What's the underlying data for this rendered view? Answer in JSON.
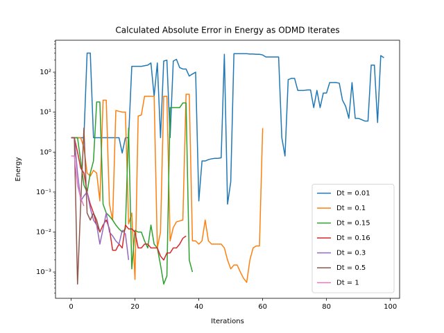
{
  "chart_data": {
    "type": "line",
    "title": "Calculated Absolute Error in Energy as ODMD Iterates",
    "x_label": "Iterations",
    "y_label": "Energy",
    "xlim": [
      -4.9,
      102.9
    ],
    "xticks": [
      0,
      20,
      40,
      60,
      80,
      100
    ],
    "ylim": [
      0.00022,
      630
    ],
    "y_scale": "log",
    "yticks": [
      {
        "value": 0.001,
        "label": "10⁻³"
      },
      {
        "value": 0.01,
        "label": "10⁻²"
      },
      {
        "value": 0.1,
        "label": "10⁻¹"
      },
      {
        "value": 1,
        "label": "10⁰"
      },
      {
        "value": 10,
        "label": "10¹"
      },
      {
        "value": 100,
        "label": "10²"
      }
    ],
    "legend_position": "lower right",
    "series": [
      {
        "name": "Dt = 0.01",
        "color": "#1f77b4",
        "values": [
          2.3,
          2.3,
          2.3,
          2.3,
          2.3,
          300,
          300,
          2.3,
          2.3,
          2.3,
          2.3,
          2.3,
          2.3,
          2.3,
          2.3,
          2.3,
          0.95,
          2.3,
          2.3,
          140,
          140,
          140,
          140,
          145,
          150,
          170,
          25,
          170,
          2.3,
          190,
          200,
          2.3,
          190,
          210,
          130,
          120,
          120,
          80,
          90,
          100,
          0.06,
          0.6,
          0.6,
          0.65,
          0.68,
          0.7,
          0.7,
          0.72,
          280,
          0.05,
          0.18,
          290,
          290,
          290,
          290,
          290,
          285,
          285,
          280,
          280,
          270,
          240,
          240,
          240,
          240,
          240,
          2.3,
          0.8,
          65,
          70,
          70,
          35,
          35,
          35,
          36,
          36,
          13,
          35,
          13,
          30,
          30,
          55,
          55,
          55,
          53,
          20,
          14,
          7,
          55,
          7,
          7,
          6.5,
          6,
          6,
          150,
          150,
          5.5,
          260,
          230
        ]
      },
      {
        "name": "Dt = 0.1",
        "color": "#ff7f0e",
        "values": [
          2.3,
          2.3,
          2.3,
          2.3,
          1.3,
          0.3,
          0.25,
          0.35,
          0.3,
          0.06,
          20,
          20,
          0.05,
          0.02,
          11,
          10.5,
          10,
          10,
          0.016,
          0.03,
          0.00065,
          8,
          8.5,
          25,
          25,
          25,
          25,
          0.004,
          0.01,
          25,
          25,
          0.006,
          0.013,
          0.018,
          0.019,
          0.02,
          28,
          28,
          0.006,
          0.006,
          0.005,
          0.006,
          0.02,
          0.006,
          0.005,
          0.005,
          0.005,
          0.005,
          0.004,
          0.002,
          0.0012,
          0.0015,
          0.0015,
          0.001,
          0.0007,
          0.00055,
          0.002,
          0.004,
          0.0045,
          0.0045,
          4
        ]
      },
      {
        "name": "Dt = 0.15",
        "color": "#2ca02c",
        "values": [
          2.3,
          2.3,
          2.3,
          0.6,
          0.15,
          0.1,
          0.3,
          0.6,
          18,
          18,
          0.05,
          0.03,
          0.025,
          0.02,
          0.015,
          0.012,
          0.01,
          0.012,
          4,
          0.0012,
          0.011,
          0.01,
          0.01,
          0.006,
          0.004,
          0.015,
          0.005,
          0.004,
          0.0015,
          0.0005,
          0.0008,
          13,
          13,
          13,
          13,
          17,
          17,
          0.002,
          0.001
        ]
      },
      {
        "name": "Dt = 0.16",
        "color": "#d62728",
        "values": [
          2.3,
          2.3,
          1,
          0.4,
          0.3,
          0.1,
          0.05,
          0.03,
          0.015,
          0.01,
          0.015,
          0.02,
          0.012,
          0.0035,
          0.0035,
          0.005,
          0.004,
          0.015,
          0.012,
          0.012,
          0.01,
          0.004,
          0.004,
          0.005,
          0.005,
          0.004,
          0.004,
          0.004,
          0.0025,
          0.002,
          0.003,
          0.003,
          0.004,
          0.004,
          0.005,
          0.007,
          0.008
        ]
      },
      {
        "name": "Dt = 0.3",
        "color": "#9467bd",
        "values": [
          2.3,
          2.3,
          0.3,
          0.06,
          0.08,
          0.1,
          0.04,
          0.02,
          0.015,
          0.005,
          0.012,
          0.03,
          0.01,
          0.008,
          0.006,
          0.005,
          0.011,
          0.009,
          0.002
        ]
      },
      {
        "name": "Dt = 0.5",
        "color": "#8c564b",
        "values": [
          2.3,
          2.3,
          0.0005,
          0.05,
          4,
          0.03,
          0.02,
          0.03,
          0.02,
          0.01
        ]
      },
      {
        "name": "Dt = 1",
        "color": "#e377c2",
        "values": [
          0.8,
          0.8,
          0.15,
          0.07,
          0.045
        ]
      }
    ]
  }
}
